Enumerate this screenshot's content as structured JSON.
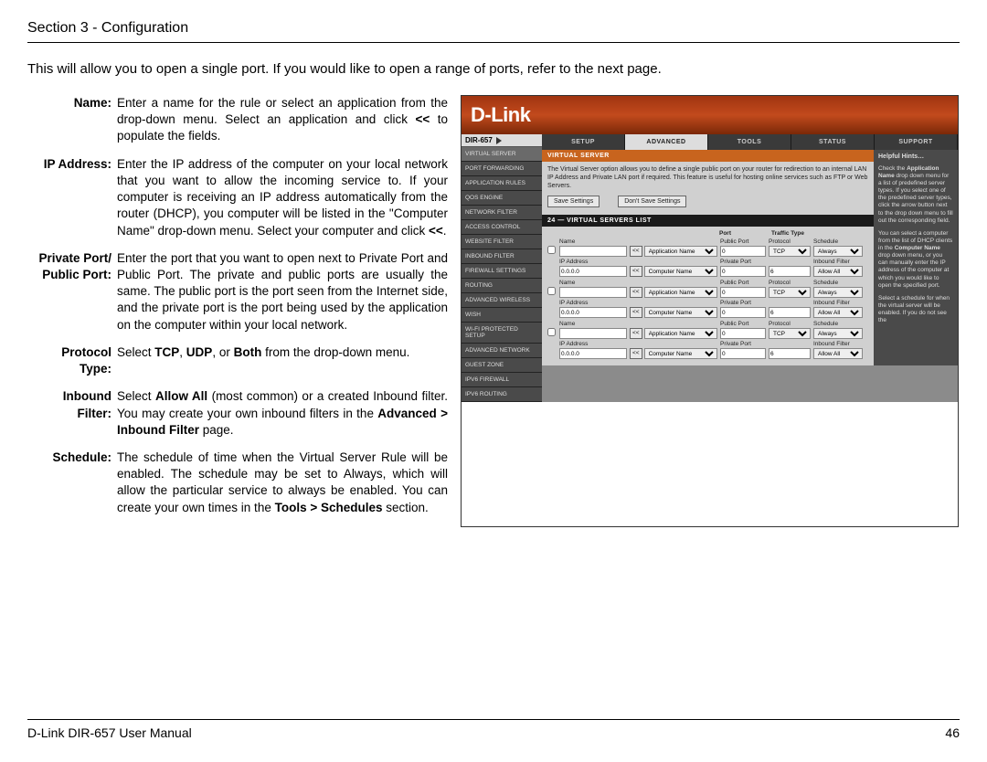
{
  "header": "Section 3 - Configuration",
  "intro": "This will allow you to open a single port. If you would like to open a range of ports, refer to the next page.",
  "defs": [
    {
      "label": "Name:",
      "html": "Enter a name for the rule or select an application from the drop-down menu. Select an application and click <b>&lt;&lt;</b> to populate the fields."
    },
    {
      "label": "IP Address:",
      "html": "Enter the IP address of the computer on your local network that you want to allow the incoming service to. If your computer is receiving an IP address automatically from the router (DHCP), you computer will be listed in the \"Computer Name\" drop-down menu. Select your computer and click <b>&lt;&lt;</b>."
    },
    {
      "label": "Private Port/ Public Port:",
      "html": "Enter the port that you want to open next to Private Port and Public Port. The private and public ports are usually the same. The public port is the port seen from the Internet side, and the private port is the port being used by the application on the computer within your local network."
    },
    {
      "label": "Protocol Type:",
      "html": "Select <b>TCP</b>, <b>UDP</b>, or <b>Both</b> from the drop-down menu."
    },
    {
      "label": "Inbound Filter:",
      "html": "Select <b>Allow All</b> (most common) or a created Inbound filter. You may create your own inbound filters in the <b>Advanced > Inbound Filter</b> page."
    },
    {
      "label": "Schedule:",
      "html": "The schedule of time when the Virtual Server Rule will be enabled. The schedule may be set to Always, which will allow the particular service to always be enabled. You can create your own times in the <b>Tools > Schedules</b> section."
    }
  ],
  "screenshot": {
    "logo": "D-Link",
    "model": "DIR-657",
    "topTabs": [
      "SETUP",
      "ADVANCED",
      "TOOLS",
      "STATUS",
      "SUPPORT"
    ],
    "activeTab": 1,
    "sideItems": [
      "VIRTUAL SERVER",
      "PORT FORWARDING",
      "APPLICATION RULES",
      "QOS ENGINE",
      "NETWORK FILTER",
      "ACCESS CONTROL",
      "WEBSITE FILTER",
      "INBOUND FILTER",
      "FIREWALL SETTINGS",
      "ROUTING",
      "ADVANCED WIRELESS",
      "WISH",
      "WI-FI PROTECTED SETUP",
      "ADVANCED NETWORK",
      "GUEST ZONE",
      "IPV6 FIREWALL",
      "IPV6 ROUTING"
    ],
    "orangeTitle": "VIRTUAL SERVER",
    "desc": "The Virtual Server option allows you to define a single public port on your router for redirection to an internal LAN IP Address and Private LAN port if required. This feature is useful for hosting online services such as FTP or Web Servers.",
    "saveBtn": "Save Settings",
    "dontSaveBtn": "Don't Save Settings",
    "listTitle": "24 — VIRTUAL SERVERS LIST",
    "hdrPort": "Port",
    "hdrTraffic": "Traffic Type",
    "row": {
      "nameLbl": "Name",
      "ipLbl": "IP Address",
      "ipVal": "0.0.0.0",
      "appSel": "Application Name",
      "compSel": "Computer Name",
      "pubLbl": "Public Port",
      "privLbl": "Private Port",
      "portVal": "0",
      "protoLbl": "Protocol",
      "protoVal": "TCP",
      "filterLbl": "Inbound Filter",
      "filterVal": "Allow All",
      "schedLbl": "Schedule",
      "schedVal": "Always",
      "arrow": "<<"
    },
    "hintsTitle": "Helpful Hints…",
    "hints": [
      "Check the <b>Application Name</b> drop down menu for a list of predefined server types. If you select one of the predefined server types, click the arrow button next to the drop down menu to fill out the corresponding field.",
      "You can select a computer from the list of DHCP clients in the <b>Computer Name</b> drop down menu, or you can manually enter the IP address of the computer at which you would like to open the specified port.",
      "Select a schedule for when the virtual server will be enabled. If you do not see the"
    ]
  },
  "footerLeft": "D-Link DIR-657 User Manual",
  "footerRight": "46"
}
